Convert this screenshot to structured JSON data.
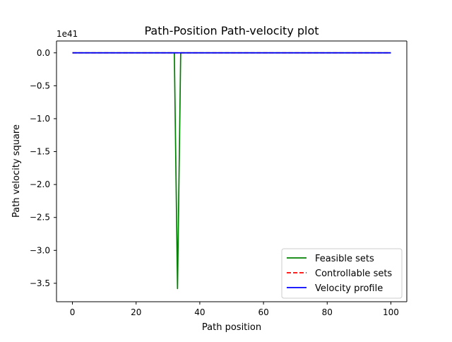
{
  "chart_data": {
    "type": "line",
    "title": "Path-Position Path-velocity plot",
    "xlabel": "Path position",
    "ylabel": "Path velocity square",
    "offset_text": "1e41",
    "xlim": [
      -5,
      105
    ],
    "ylim": [
      -3.78,
      0.18
    ],
    "x_ticks": [
      0,
      20,
      40,
      60,
      80,
      100
    ],
    "x_tick_labels": [
      "0",
      "20",
      "40",
      "60",
      "80",
      "100"
    ],
    "y_ticks": [
      0.0,
      -0.5,
      -1.0,
      -1.5,
      -2.0,
      -2.5,
      -3.0,
      -3.5
    ],
    "y_tick_labels": [
      "0.0",
      "−0.5",
      "−1.0",
      "−1.5",
      "−2.0",
      "−2.5",
      "−3.0",
      "−3.5"
    ],
    "grid": false,
    "legend_position": "lower-right",
    "series": [
      {
        "name": "Feasible sets",
        "color": "#008000",
        "style": "solid",
        "x": [
          0,
          10,
          20,
          30,
          31,
          32,
          33,
          34,
          35,
          40,
          50,
          60,
          70,
          80,
          90,
          100
        ],
        "y": [
          0,
          0,
          0,
          0,
          0,
          0,
          -3.58,
          0,
          0,
          0,
          0,
          0,
          0,
          0,
          0,
          0
        ]
      },
      {
        "name": "Controllable sets",
        "color": "#ff0000",
        "style": "dashed",
        "x": [
          0,
          100
        ],
        "y": [
          0,
          0
        ]
      },
      {
        "name": "Velocity profile",
        "color": "#0000ff",
        "style": "solid",
        "x": [
          0,
          100
        ],
        "y": [
          0,
          0
        ]
      }
    ]
  }
}
